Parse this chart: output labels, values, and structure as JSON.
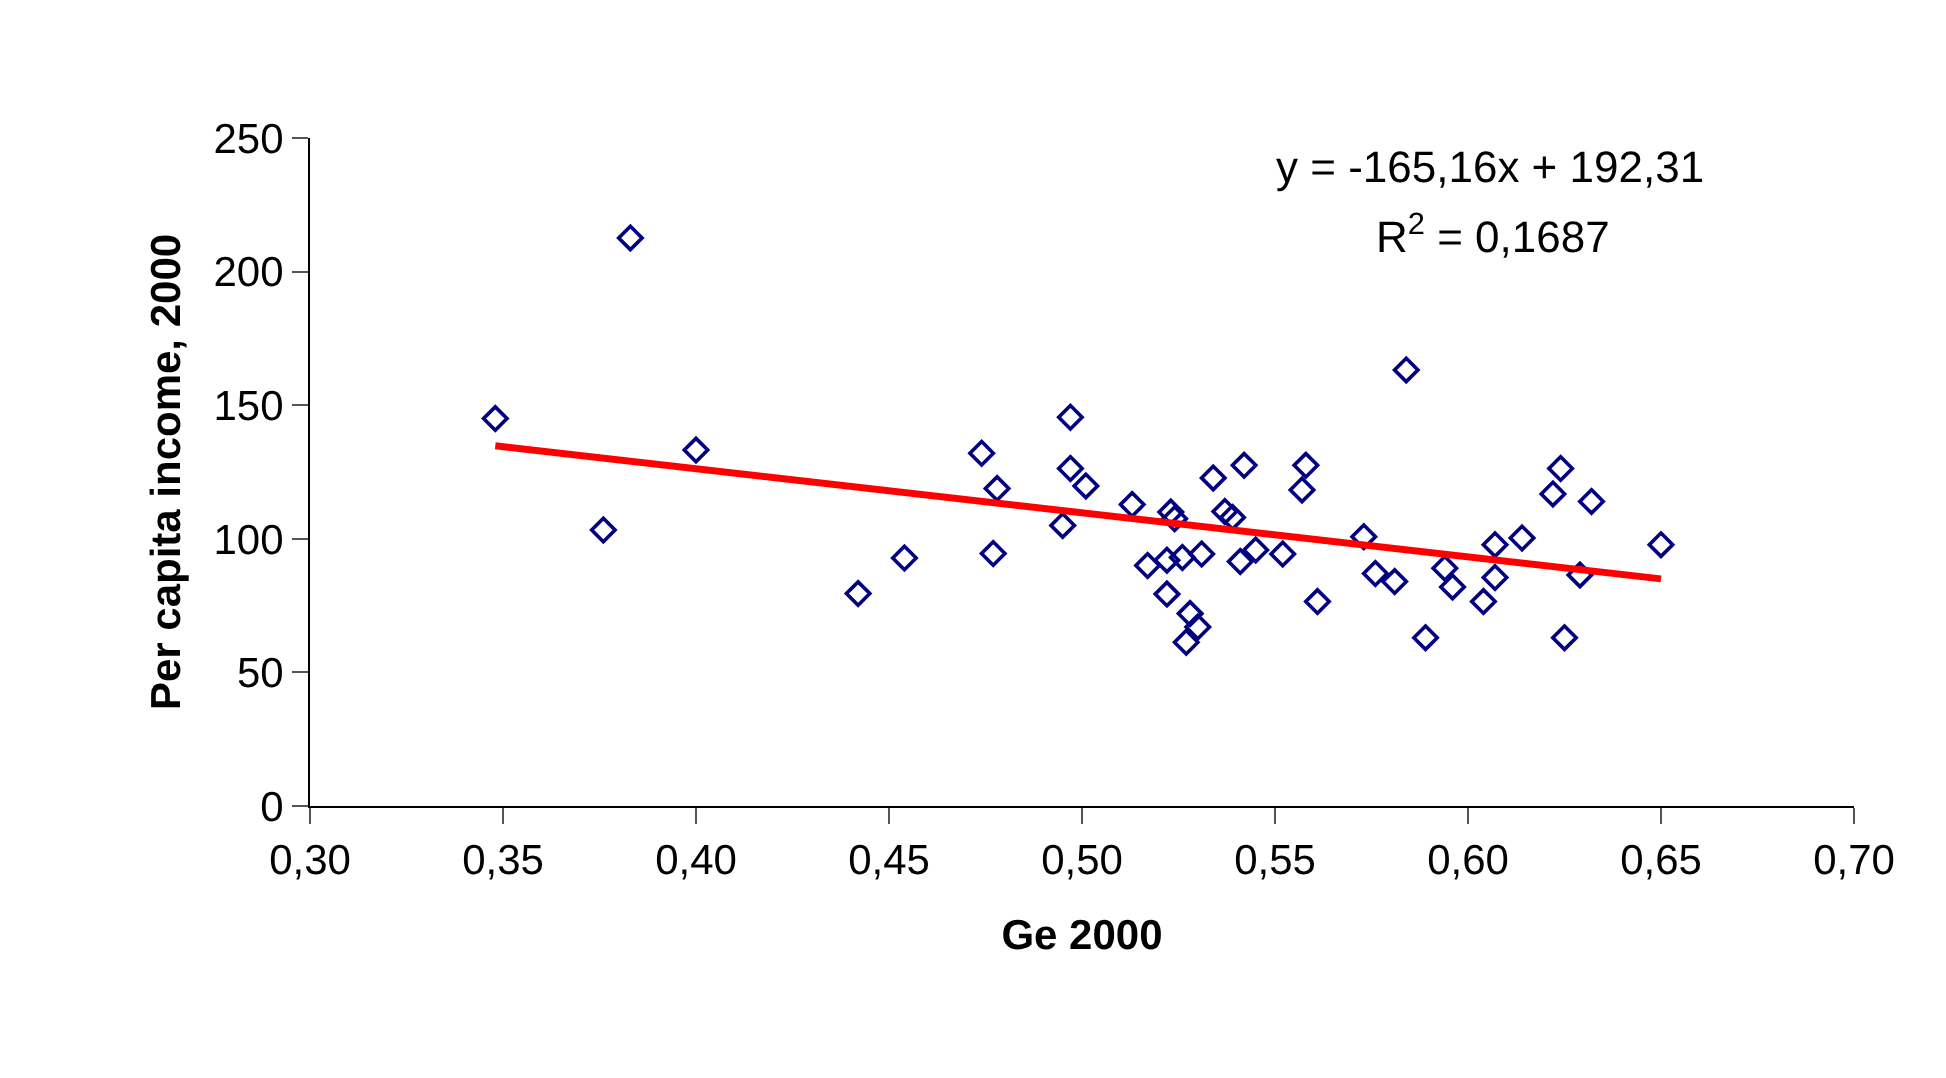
{
  "chart_data": {
    "type": "scatter",
    "xlabel": "Ge 2000",
    "ylabel": "Per capita income, 2000",
    "xlim": [
      0.3,
      0.7
    ],
    "ylim": [
      0,
      250
    ],
    "xticks": [
      {
        "value": 0.3,
        "label": "0,30"
      },
      {
        "value": 0.35,
        "label": "0,35"
      },
      {
        "value": 0.4,
        "label": "0,40"
      },
      {
        "value": 0.45,
        "label": "0,45"
      },
      {
        "value": 0.5,
        "label": "0,50"
      },
      {
        "value": 0.55,
        "label": "0,55"
      },
      {
        "value": 0.6,
        "label": "0,60"
      },
      {
        "value": 0.65,
        "label": "0,65"
      },
      {
        "value": 0.7,
        "label": "0,70"
      }
    ],
    "yticks": [
      0,
      50,
      100,
      150,
      200,
      250
    ],
    "annotations": [
      "y = -165,16x + 192,31",
      "R$^{2}$ = 0,1687"
    ],
    "series": [
      {
        "marker": "diamond",
        "color": "#000080",
        "x": [
          0.348,
          0.383,
          0.376,
          0.4,
          0.442,
          0.454,
          0.474,
          0.478,
          0.477,
          0.497,
          0.497,
          0.501,
          0.495,
          0.513,
          0.517,
          0.522,
          0.526,
          0.523,
          0.524,
          0.522,
          0.528,
          0.53,
          0.527,
          0.531,
          0.534,
          0.537,
          0.539,
          0.542,
          0.541,
          0.545,
          0.552,
          0.558,
          0.557,
          0.561,
          0.584,
          0.573,
          0.576,
          0.581,
          0.589,
          0.594,
          0.596,
          0.604,
          0.607,
          0.607,
          0.614,
          0.622,
          0.624,
          0.625,
          0.632,
          0.629,
          0.65
        ],
        "values": [
          145,
          212.6,
          103.3,
          133.2,
          79.5,
          92.8,
          132,
          118.8,
          94.5,
          145.5,
          126.3,
          119.8,
          105,
          112.8,
          90,
          92,
          93,
          110,
          107.5,
          79.3,
          72,
          67,
          61.3,
          94.3,
          122.8,
          110.2,
          108,
          127.5,
          91.5,
          95.8,
          94.3,
          127.5,
          118.3,
          76.5,
          163.2,
          100.8,
          87,
          84,
          63,
          89,
          82,
          76.5,
          85.5,
          97.8,
          100.3,
          116.8,
          126.3,
          63,
          114,
          86.5,
          97.8
        ]
      },
      {
        "type": "line",
        "marker": "none",
        "color": "#ff0000",
        "x": [
          0.348,
          0.65
        ],
        "values": [
          134.8,
          85.0
        ]
      }
    ]
  }
}
